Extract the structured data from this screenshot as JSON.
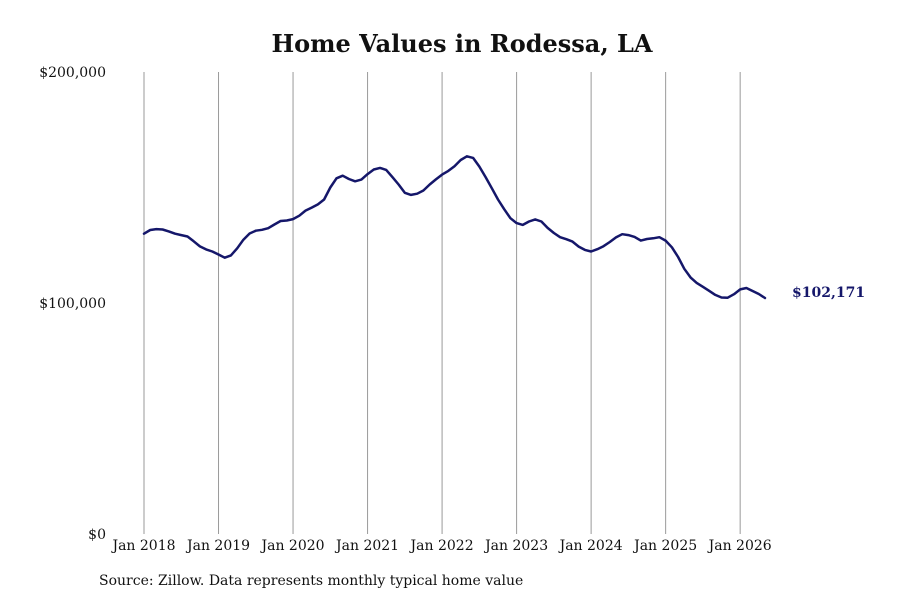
{
  "chart_data": {
    "type": "line",
    "title": "Home Values in Rodessa, LA",
    "xlabel": "",
    "ylabel": "",
    "ylim": [
      0,
      200000
    ],
    "y_ticks": [
      {
        "value": 0,
        "label": "$0"
      },
      {
        "value": 100000,
        "label": "$100,000"
      },
      {
        "value": 200000,
        "label": "$200,000"
      }
    ],
    "x_ticks": [
      {
        "value": "2018-01",
        "label": "Jan 2018"
      },
      {
        "value": "2019-01",
        "label": "Jan 2019"
      },
      {
        "value": "2020-01",
        "label": "Jan 2020"
      },
      {
        "value": "2021-01",
        "label": "Jan 2021"
      },
      {
        "value": "2022-01",
        "label": "Jan 2022"
      },
      {
        "value": "2023-01",
        "label": "Jan 2023"
      },
      {
        "value": "2024-01",
        "label": "Jan 2024"
      },
      {
        "value": "2025-01",
        "label": "Jan 2025"
      },
      {
        "value": "2026-01",
        "label": "Jan 2026"
      }
    ],
    "grid": "vertical",
    "line_color": "#15176a",
    "end_label": "$102,171",
    "series": [
      {
        "points": [
          [
            "2018-01",
            130000
          ],
          [
            "2018-02",
            131600
          ],
          [
            "2018-03",
            132000
          ],
          [
            "2018-04",
            131800
          ],
          [
            "2018-05",
            131000
          ],
          [
            "2018-06",
            130000
          ],
          [
            "2018-07",
            129400
          ],
          [
            "2018-08",
            128800
          ],
          [
            "2018-09",
            126700
          ],
          [
            "2018-10",
            124500
          ],
          [
            "2018-11",
            123200
          ],
          [
            "2018-12",
            122300
          ],
          [
            "2019-01",
            121000
          ],
          [
            "2019-02",
            119600
          ],
          [
            "2019-03",
            120600
          ],
          [
            "2019-04",
            123700
          ],
          [
            "2019-05",
            127400
          ],
          [
            "2019-06",
            130100
          ],
          [
            "2019-07",
            131300
          ],
          [
            "2019-08",
            131700
          ],
          [
            "2019-09",
            132400
          ],
          [
            "2019-10",
            134000
          ],
          [
            "2019-11",
            135500
          ],
          [
            "2019-12",
            135700
          ],
          [
            "2020-01",
            136300
          ],
          [
            "2020-02",
            137800
          ],
          [
            "2020-03",
            140000
          ],
          [
            "2020-04",
            141300
          ],
          [
            "2020-05",
            142700
          ],
          [
            "2020-06",
            144800
          ],
          [
            "2020-07",
            150000
          ],
          [
            "2020-08",
            154000
          ],
          [
            "2020-09",
            155100
          ],
          [
            "2020-10",
            153700
          ],
          [
            "2020-11",
            152700
          ],
          [
            "2020-12",
            153400
          ],
          [
            "2021-01",
            155800
          ],
          [
            "2021-02",
            157800
          ],
          [
            "2021-03",
            158500
          ],
          [
            "2021-04",
            157600
          ],
          [
            "2021-05",
            154500
          ],
          [
            "2021-06",
            151300
          ],
          [
            "2021-07",
            147700
          ],
          [
            "2021-08",
            146800
          ],
          [
            "2021-09",
            147300
          ],
          [
            "2021-10",
            148700
          ],
          [
            "2021-11",
            151300
          ],
          [
            "2021-12",
            153500
          ],
          [
            "2022-01",
            155600
          ],
          [
            "2022-02",
            157200
          ],
          [
            "2022-03",
            159200
          ],
          [
            "2022-04",
            161900
          ],
          [
            "2022-05",
            163500
          ],
          [
            "2022-06",
            162800
          ],
          [
            "2022-07",
            159100
          ],
          [
            "2022-08",
            154500
          ],
          [
            "2022-09",
            149700
          ],
          [
            "2022-10",
            144800
          ],
          [
            "2022-11",
            140600
          ],
          [
            "2022-12",
            136700
          ],
          [
            "2023-01",
            134600
          ],
          [
            "2023-02",
            133800
          ],
          [
            "2023-03",
            135300
          ],
          [
            "2023-04",
            136200
          ],
          [
            "2023-05",
            135300
          ],
          [
            "2023-06",
            132500
          ],
          [
            "2023-07",
            130300
          ],
          [
            "2023-08",
            128500
          ],
          [
            "2023-09",
            127600
          ],
          [
            "2023-10",
            126600
          ],
          [
            "2023-11",
            124400
          ],
          [
            "2023-12",
            123000
          ],
          [
            "2024-01",
            122300
          ],
          [
            "2024-02",
            123300
          ],
          [
            "2024-03",
            124600
          ],
          [
            "2024-04",
            126400
          ],
          [
            "2024-05",
            128400
          ],
          [
            "2024-06",
            129800
          ],
          [
            "2024-07",
            129400
          ],
          [
            "2024-08",
            128600
          ],
          [
            "2024-09",
            127000
          ],
          [
            "2024-10",
            127700
          ],
          [
            "2024-11",
            128000
          ],
          [
            "2024-12",
            128500
          ],
          [
            "2025-01",
            127000
          ],
          [
            "2025-02",
            124100
          ],
          [
            "2025-03",
            119900
          ],
          [
            "2025-04",
            114800
          ],
          [
            "2025-05",
            111100
          ],
          [
            "2025-06",
            108700
          ],
          [
            "2025-07",
            107000
          ],
          [
            "2025-08",
            105300
          ],
          [
            "2025-09",
            103500
          ],
          [
            "2025-10",
            102400
          ],
          [
            "2025-11",
            102300
          ],
          [
            "2025-12",
            103800
          ],
          [
            "2026-01",
            105900
          ],
          [
            "2026-02",
            106500
          ],
          [
            "2026-03",
            105200
          ],
          [
            "2026-04",
            103900
          ],
          [
            "2026-05",
            102171
          ]
        ]
      }
    ]
  },
  "footer": {
    "source": "Source: Zillow. Data represents monthly typical home value"
  }
}
